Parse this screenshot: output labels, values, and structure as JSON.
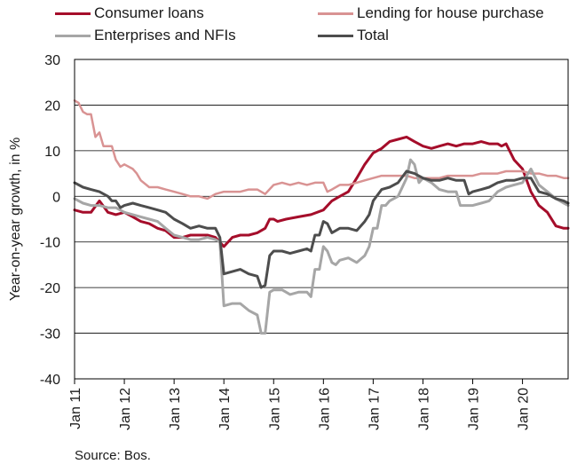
{
  "chart_data": {
    "type": "line",
    "ylabel": "Year-on-year growth, in %",
    "ylim": [
      -40,
      30
    ],
    "yticks": [
      "30",
      "20",
      "10",
      "0",
      "-10",
      "-20",
      "-30",
      "-40"
    ],
    "xlim": [
      2011.0,
      2020.917
    ],
    "xtick_labels": [
      "Jan 11",
      "Jan 12",
      "Jan 13",
      "Jan 14",
      "Jan 15",
      "Jan 16",
      "Jan 17",
      "Jan 18",
      "Jan 19",
      "Jan 20"
    ],
    "legend_position": "top",
    "source": "Source: Bos.",
    "series": [
      {
        "name": "Consumer loans",
        "color": "#a50d2a",
        "width": 3,
        "points": [
          [
            2011.0,
            -3
          ],
          [
            2011.17,
            -3.5
          ],
          [
            2011.33,
            -3.5
          ],
          [
            2011.5,
            -1
          ],
          [
            2011.67,
            -3.5
          ],
          [
            2011.83,
            -4
          ],
          [
            2012.0,
            -3.5
          ],
          [
            2012.17,
            -4.5
          ],
          [
            2012.33,
            -5.5
          ],
          [
            2012.5,
            -6
          ],
          [
            2012.67,
            -7
          ],
          [
            2012.83,
            -7.5
          ],
          [
            2013.0,
            -9
          ],
          [
            2013.17,
            -9
          ],
          [
            2013.33,
            -8.5
          ],
          [
            2013.5,
            -8.5
          ],
          [
            2013.67,
            -8.5
          ],
          [
            2013.83,
            -9
          ],
          [
            2014.0,
            -11
          ],
          [
            2014.17,
            -9
          ],
          [
            2014.33,
            -8.5
          ],
          [
            2014.5,
            -8.5
          ],
          [
            2014.67,
            -8
          ],
          [
            2014.83,
            -7
          ],
          [
            2014.92,
            -5
          ],
          [
            2015.0,
            -5
          ],
          [
            2015.08,
            -5.5
          ],
          [
            2015.25,
            -5
          ],
          [
            2015.5,
            -4.5
          ],
          [
            2015.75,
            -4
          ],
          [
            2016.0,
            -3
          ],
          [
            2016.17,
            -1
          ],
          [
            2016.33,
            0
          ],
          [
            2016.5,
            1
          ],
          [
            2016.67,
            4
          ],
          [
            2016.83,
            7
          ],
          [
            2017.0,
            9.5
          ],
          [
            2017.17,
            10.5
          ],
          [
            2017.33,
            12
          ],
          [
            2017.5,
            12.5
          ],
          [
            2017.67,
            13
          ],
          [
            2017.83,
            12
          ],
          [
            2018.0,
            11
          ],
          [
            2018.17,
            10.5
          ],
          [
            2018.33,
            11
          ],
          [
            2018.5,
            11.5
          ],
          [
            2018.67,
            11
          ],
          [
            2018.83,
            11.5
          ],
          [
            2019.0,
            11.5
          ],
          [
            2019.17,
            12
          ],
          [
            2019.33,
            11.5
          ],
          [
            2019.5,
            11.5
          ],
          [
            2019.58,
            11
          ],
          [
            2019.67,
            11.5
          ],
          [
            2019.83,
            8
          ],
          [
            2020.0,
            6
          ],
          [
            2020.17,
            1
          ],
          [
            2020.33,
            -2
          ],
          [
            2020.5,
            -3.5
          ],
          [
            2020.67,
            -6.5
          ],
          [
            2020.83,
            -7
          ],
          [
            2020.917,
            -7
          ]
        ]
      },
      {
        "name": "Lending for house purchase",
        "color": "#d99393",
        "width": 2.5,
        "points": [
          [
            2011.0,
            21
          ],
          [
            2011.08,
            20.5
          ],
          [
            2011.17,
            18.5
          ],
          [
            2011.25,
            18
          ],
          [
            2011.33,
            18
          ],
          [
            2011.42,
            13
          ],
          [
            2011.5,
            14
          ],
          [
            2011.58,
            11
          ],
          [
            2011.67,
            11
          ],
          [
            2011.75,
            11
          ],
          [
            2011.83,
            8
          ],
          [
            2011.92,
            6.5
          ],
          [
            2012.0,
            7
          ],
          [
            2012.17,
            6
          ],
          [
            2012.25,
            5
          ],
          [
            2012.33,
            3.5
          ],
          [
            2012.5,
            2
          ],
          [
            2012.67,
            2
          ],
          [
            2012.83,
            1.5
          ],
          [
            2013.0,
            1
          ],
          [
            2013.17,
            0.5
          ],
          [
            2013.33,
            0
          ],
          [
            2013.5,
            0
          ],
          [
            2013.67,
            -0.5
          ],
          [
            2013.83,
            0.5
          ],
          [
            2014.0,
            1
          ],
          [
            2014.17,
            1
          ],
          [
            2014.33,
            1
          ],
          [
            2014.5,
            1.5
          ],
          [
            2014.67,
            1.5
          ],
          [
            2014.83,
            0.5
          ],
          [
            2015.0,
            2.5
          ],
          [
            2015.17,
            3
          ],
          [
            2015.33,
            2.5
          ],
          [
            2015.5,
            3
          ],
          [
            2015.67,
            2.5
          ],
          [
            2015.83,
            3
          ],
          [
            2016.0,
            3
          ],
          [
            2016.08,
            1
          ],
          [
            2016.17,
            1.5
          ],
          [
            2016.33,
            2.5
          ],
          [
            2016.5,
            2.5
          ],
          [
            2016.67,
            3
          ],
          [
            2016.83,
            3.5
          ],
          [
            2017.0,
            4
          ],
          [
            2017.17,
            4.5
          ],
          [
            2017.33,
            4.5
          ],
          [
            2017.5,
            4.5
          ],
          [
            2017.67,
            4.5
          ],
          [
            2017.83,
            4
          ],
          [
            2018.0,
            4
          ],
          [
            2018.17,
            4
          ],
          [
            2018.33,
            4
          ],
          [
            2018.5,
            4.5
          ],
          [
            2018.67,
            4.5
          ],
          [
            2018.83,
            4.5
          ],
          [
            2019.0,
            4.5
          ],
          [
            2019.17,
            5
          ],
          [
            2019.33,
            5
          ],
          [
            2019.5,
            5
          ],
          [
            2019.67,
            5.5
          ],
          [
            2019.83,
            5.5
          ],
          [
            2020.0,
            5.5
          ],
          [
            2020.17,
            5
          ],
          [
            2020.33,
            5
          ],
          [
            2020.5,
            4.5
          ],
          [
            2020.67,
            4.5
          ],
          [
            2020.83,
            4
          ],
          [
            2020.917,
            4
          ]
        ]
      },
      {
        "name": "Enterprises and NFIs",
        "color": "#a6a6a6",
        "width": 3,
        "points": [
          [
            2011.0,
            -0.5
          ],
          [
            2011.17,
            -1.5
          ],
          [
            2011.33,
            -2
          ],
          [
            2011.5,
            -2
          ],
          [
            2011.67,
            -2.5
          ],
          [
            2011.83,
            -2.5
          ],
          [
            2012.0,
            -3.5
          ],
          [
            2012.17,
            -4
          ],
          [
            2012.33,
            -4.5
          ],
          [
            2012.5,
            -5
          ],
          [
            2012.67,
            -5.5
          ],
          [
            2012.83,
            -7
          ],
          [
            2013.0,
            -8.5
          ],
          [
            2013.17,
            -9
          ],
          [
            2013.33,
            -9.5
          ],
          [
            2013.5,
            -9.5
          ],
          [
            2013.67,
            -9
          ],
          [
            2013.83,
            -9.5
          ],
          [
            2013.92,
            -10
          ],
          [
            2014.0,
            -24
          ],
          [
            2014.17,
            -23.5
          ],
          [
            2014.33,
            -23.5
          ],
          [
            2014.5,
            -25
          ],
          [
            2014.67,
            -26
          ],
          [
            2014.75,
            -30
          ],
          [
            2014.83,
            -30
          ],
          [
            2014.92,
            -21
          ],
          [
            2015.0,
            -20.5
          ],
          [
            2015.17,
            -20.5
          ],
          [
            2015.33,
            -21.5
          ],
          [
            2015.5,
            -21
          ],
          [
            2015.67,
            -21
          ],
          [
            2015.75,
            -22
          ],
          [
            2015.83,
            -16
          ],
          [
            2015.92,
            -16
          ],
          [
            2016.0,
            -11
          ],
          [
            2016.08,
            -12
          ],
          [
            2016.17,
            -14.5
          ],
          [
            2016.25,
            -15
          ],
          [
            2016.33,
            -14
          ],
          [
            2016.5,
            -13.5
          ],
          [
            2016.67,
            -14.5
          ],
          [
            2016.83,
            -13
          ],
          [
            2016.92,
            -11
          ],
          [
            2017.0,
            -7
          ],
          [
            2017.08,
            -7
          ],
          [
            2017.17,
            -2
          ],
          [
            2017.25,
            -2
          ],
          [
            2017.33,
            -1
          ],
          [
            2017.5,
            0
          ],
          [
            2017.67,
            4
          ],
          [
            2017.75,
            8
          ],
          [
            2017.83,
            7
          ],
          [
            2017.92,
            3
          ],
          [
            2018.0,
            4
          ],
          [
            2018.17,
            3
          ],
          [
            2018.33,
            1.5
          ],
          [
            2018.5,
            1
          ],
          [
            2018.67,
            1
          ],
          [
            2018.75,
            -2
          ],
          [
            2018.83,
            -2
          ],
          [
            2019.0,
            -2
          ],
          [
            2019.17,
            -1.5
          ],
          [
            2019.33,
            -1
          ],
          [
            2019.5,
            1
          ],
          [
            2019.67,
            2
          ],
          [
            2019.83,
            2.5
          ],
          [
            2020.0,
            3
          ],
          [
            2020.17,
            6
          ],
          [
            2020.33,
            2.5
          ],
          [
            2020.5,
            1
          ],
          [
            2020.67,
            -0.5
          ],
          [
            2020.83,
            -1.5
          ],
          [
            2020.917,
            -2
          ]
        ]
      },
      {
        "name": "Total",
        "color": "#4d4d4d",
        "width": 3,
        "points": [
          [
            2011.0,
            3
          ],
          [
            2011.17,
            2
          ],
          [
            2011.33,
            1.5
          ],
          [
            2011.5,
            1
          ],
          [
            2011.67,
            0
          ],
          [
            2011.75,
            -1
          ],
          [
            2011.83,
            -1
          ],
          [
            2011.92,
            -2.5
          ],
          [
            2012.0,
            -2
          ],
          [
            2012.17,
            -1.5
          ],
          [
            2012.33,
            -2
          ],
          [
            2012.5,
            -2.5
          ],
          [
            2012.67,
            -3
          ],
          [
            2012.83,
            -3.5
          ],
          [
            2013.0,
            -5
          ],
          [
            2013.17,
            -6
          ],
          [
            2013.33,
            -7
          ],
          [
            2013.5,
            -6.5
          ],
          [
            2013.67,
            -7
          ],
          [
            2013.83,
            -7
          ],
          [
            2013.92,
            -9
          ],
          [
            2014.0,
            -17
          ],
          [
            2014.17,
            -16.5
          ],
          [
            2014.33,
            -16
          ],
          [
            2014.5,
            -17
          ],
          [
            2014.67,
            -17.5
          ],
          [
            2014.75,
            -20
          ],
          [
            2014.83,
            -19.5
          ],
          [
            2014.92,
            -13
          ],
          [
            2015.0,
            -12
          ],
          [
            2015.17,
            -12
          ],
          [
            2015.33,
            -12.5
          ],
          [
            2015.5,
            -12
          ],
          [
            2015.67,
            -11.5
          ],
          [
            2015.75,
            -12
          ],
          [
            2015.83,
            -8.5
          ],
          [
            2015.92,
            -8.5
          ],
          [
            2016.0,
            -5.5
          ],
          [
            2016.08,
            -6
          ],
          [
            2016.17,
            -8
          ],
          [
            2016.33,
            -7
          ],
          [
            2016.5,
            -7
          ],
          [
            2016.67,
            -7.5
          ],
          [
            2016.83,
            -5.5
          ],
          [
            2016.92,
            -4
          ],
          [
            2017.0,
            -1
          ],
          [
            2017.17,
            1.5
          ],
          [
            2017.33,
            2
          ],
          [
            2017.5,
            3
          ],
          [
            2017.67,
            5.5
          ],
          [
            2017.83,
            5
          ],
          [
            2018.0,
            4
          ],
          [
            2018.17,
            3.5
          ],
          [
            2018.33,
            3.5
          ],
          [
            2018.5,
            4
          ],
          [
            2018.67,
            3.5
          ],
          [
            2018.83,
            3.5
          ],
          [
            2018.92,
            0.5
          ],
          [
            2019.0,
            1
          ],
          [
            2019.17,
            1.5
          ],
          [
            2019.33,
            2
          ],
          [
            2019.5,
            3
          ],
          [
            2019.67,
            3.5
          ],
          [
            2019.83,
            3.5
          ],
          [
            2020.0,
            4
          ],
          [
            2020.17,
            4
          ],
          [
            2020.33,
            1
          ],
          [
            2020.5,
            0.5
          ],
          [
            2020.67,
            -0.5
          ],
          [
            2020.83,
            -1
          ],
          [
            2020.917,
            -1.5
          ]
        ]
      }
    ]
  }
}
